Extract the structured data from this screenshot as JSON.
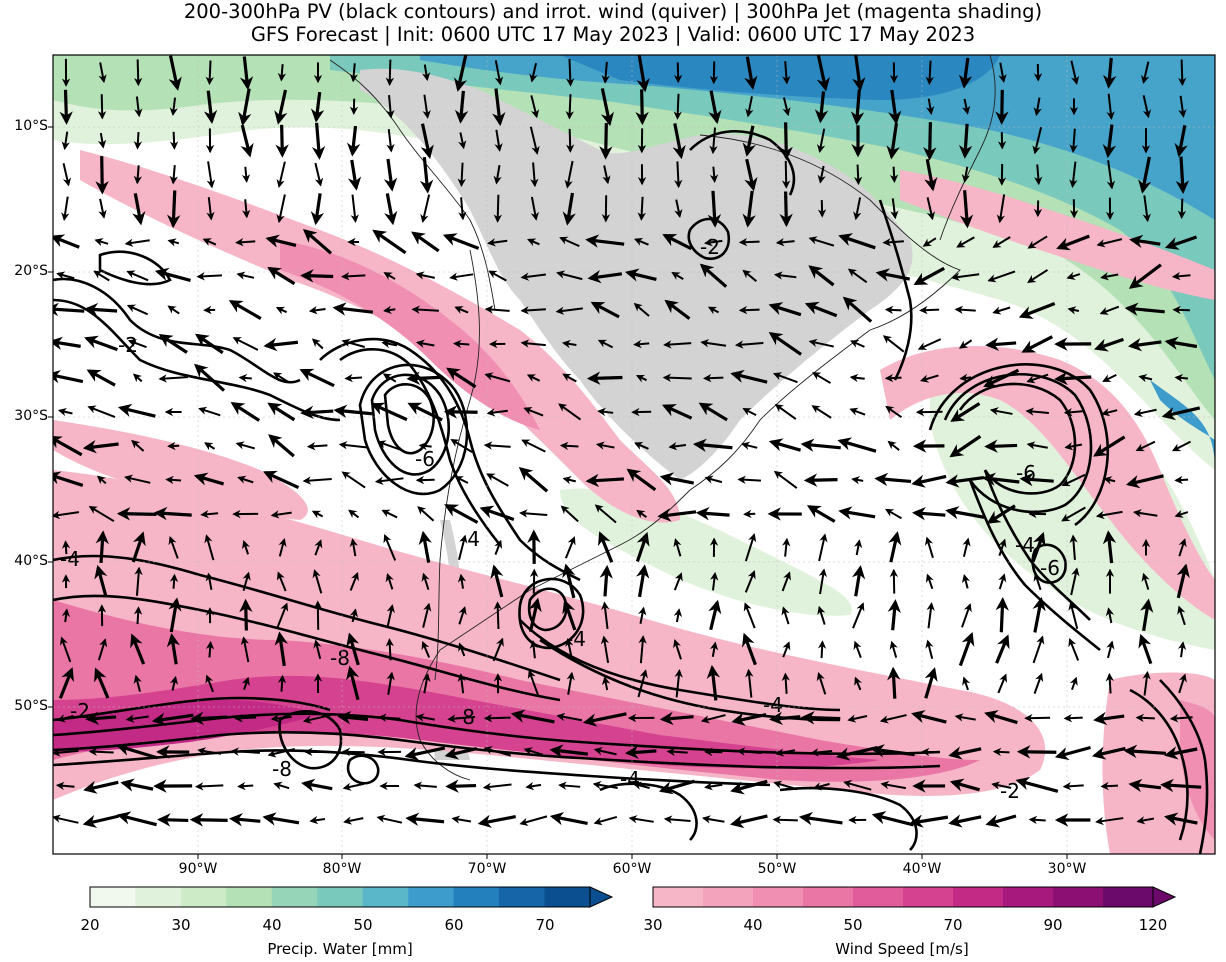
{
  "title": {
    "line1": "200-300hPa PV (black contours) and irrot. wind (quiver) | 300hPa Jet (magenta shading)",
    "line2": "GFS Forecast | Init: 0600 UTC 17 May 2023 | Valid: 0600 UTC 17 May 2023"
  },
  "axes": {
    "lat_ticks": [
      "10°S",
      "20°S",
      "30°S",
      "40°S",
      "50°S"
    ],
    "lon_ticks": [
      "90°W",
      "80°W",
      "70°W",
      "60°W",
      "50°W",
      "40°W",
      "30°W"
    ]
  },
  "colorbars": {
    "precip": {
      "label": "Precip. Water [mm]",
      "ticks": [
        "20",
        "30",
        "40",
        "50",
        "60",
        "70"
      ],
      "colors": [
        "#f1f9ef",
        "#e1f2dc",
        "#cdebc7",
        "#b4e1b6",
        "#97d5b8",
        "#79c9bd",
        "#5ab6c9",
        "#3d9ccc",
        "#2380bd",
        "#1565a8",
        "#0b4f90"
      ]
    },
    "wind": {
      "label": "Wind Speed [m/s]",
      "ticks": [
        "30",
        "40",
        "50",
        "70",
        "90",
        "120"
      ],
      "colors": [
        "#f7b6c8",
        "#f4a3bc",
        "#f08fb1",
        "#ea76a6",
        "#e15c9b",
        "#d5428f",
        "#c22a85",
        "#a8197d",
        "#8c0f74",
        "#6b0a6a"
      ]
    }
  },
  "pv_contour_labels": [
    "-2",
    "-4",
    "-6",
    "-8"
  ]
}
